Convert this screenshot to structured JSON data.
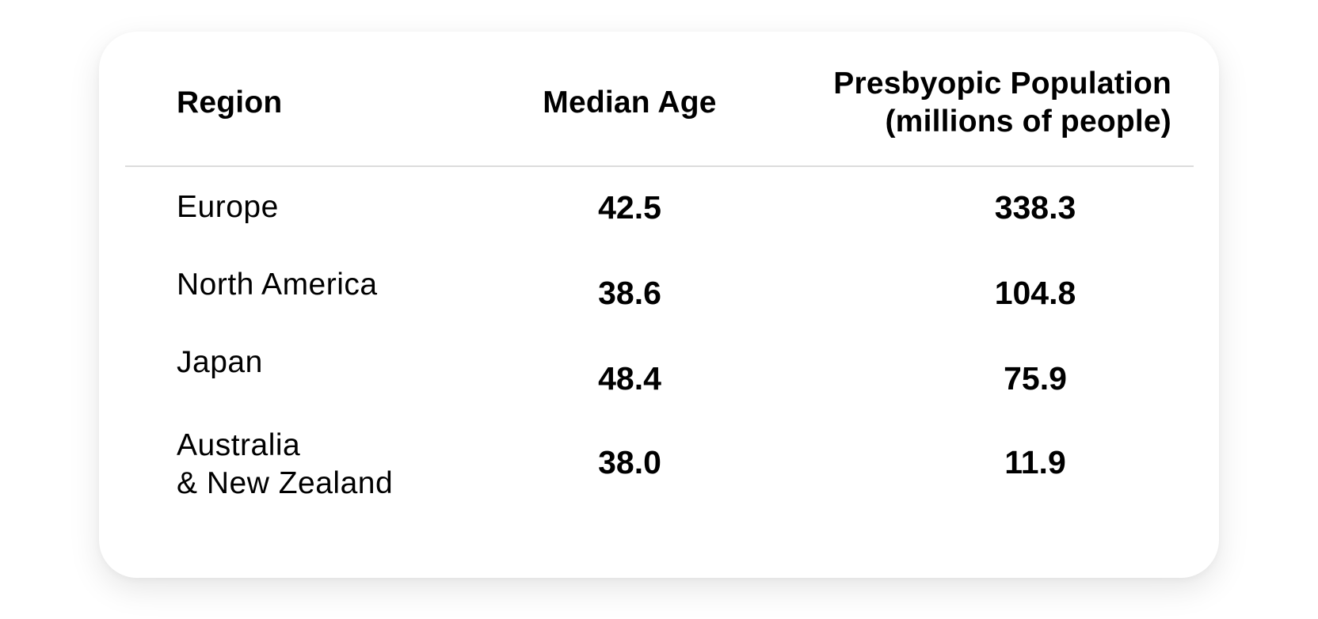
{
  "chart_data": {
    "type": "table",
    "columns": [
      "Region",
      "Median Age",
      "Presbyopic Population\n(millions of people)"
    ],
    "rows": [
      {
        "region": "Europe",
        "median_age": "42.5",
        "population": "338.3"
      },
      {
        "region": "North America",
        "median_age": "38.6",
        "population": "104.8"
      },
      {
        "region": "Japan",
        "median_age": "48.4",
        "population": "75.9"
      },
      {
        "region": "Australia\n& New Zealand",
        "median_age": "38.0",
        "population": "11.9"
      }
    ]
  }
}
